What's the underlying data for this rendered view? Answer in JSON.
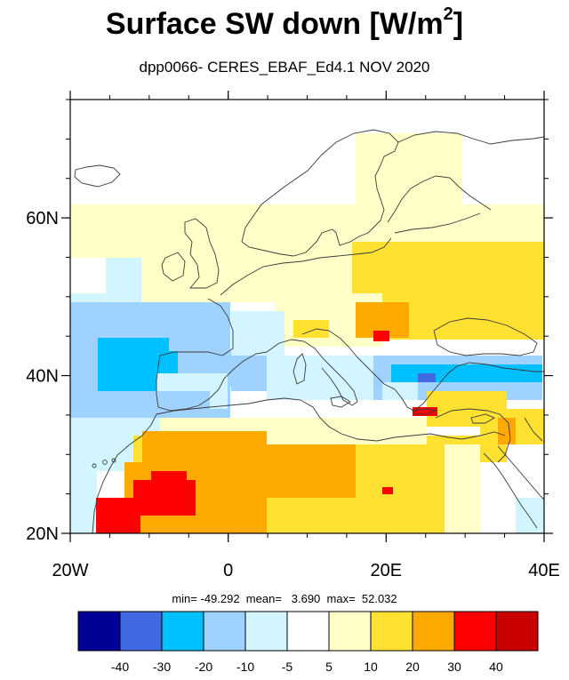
{
  "title_main": "Surface SW down [W/m",
  "title_sup": "2",
  "title_end": "]",
  "subtitle": "dpp0066- CERES_EBAF_Ed4.1  NOV 2020",
  "stats": "min= -49.292  mean=   3.690  max=  52.032",
  "map": {
    "lon_range": [
      -20,
      40
    ],
    "lat_range": [
      20,
      75
    ],
    "lon_ticks": [
      {
        "v": -20,
        "label": "20W"
      },
      {
        "v": 0,
        "label": "0"
      },
      {
        "v": 20,
        "label": "20E"
      },
      {
        "v": 40,
        "label": "40E"
      }
    ],
    "lat_ticks": [
      {
        "v": 20,
        "label": "20N"
      },
      {
        "v": 40,
        "label": "40N"
      },
      {
        "v": 60,
        "label": "60N"
      }
    ]
  },
  "colorbar": {
    "colors": [
      "#000096",
      "#4169e1",
      "#00bfff",
      "#a0d2ff",
      "#d2f5ff",
      "#ffffff",
      "#ffffc8",
      "#ffe132",
      "#ffaa00",
      "#ff0000",
      "#c80000"
    ],
    "labels": [
      "-40",
      "-30",
      "-20",
      "-10",
      "-5",
      "5",
      "10",
      "20",
      "30",
      "40"
    ]
  }
}
